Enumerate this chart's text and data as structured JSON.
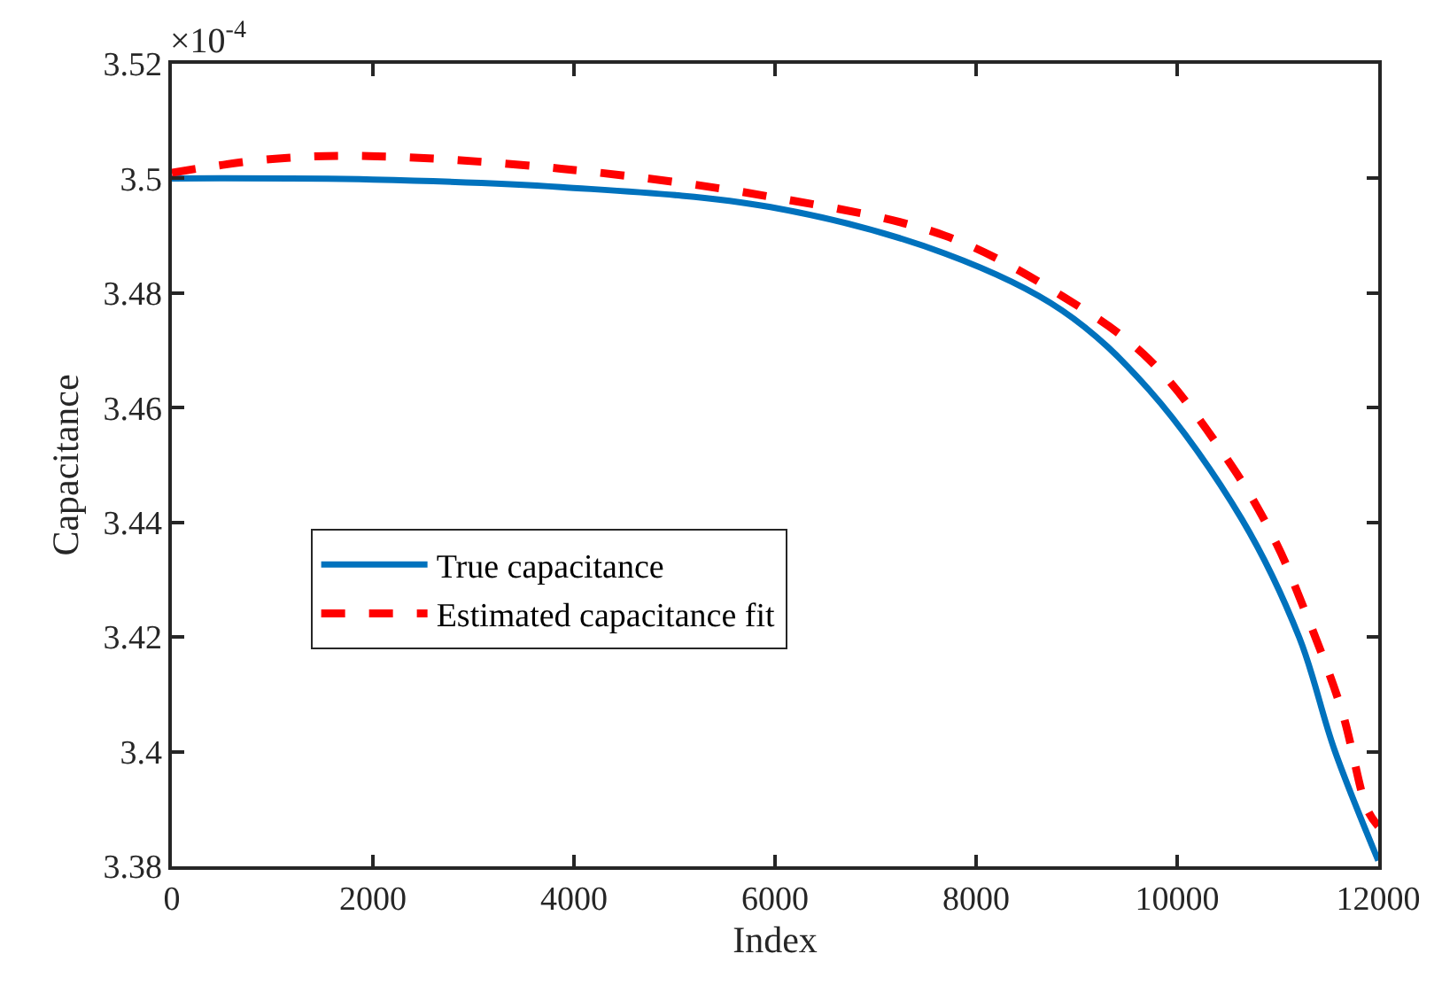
{
  "chart_data": {
    "type": "line",
    "xlabel": "Index",
    "ylabel": "Capacitance",
    "annotations": [
      "×10$^{-4}$"
    ],
    "xlim": [
      0,
      12000
    ],
    "xticks": [
      0,
      2000,
      4000,
      6000,
      8000,
      10000,
      12000
    ],
    "ylim": [
      3.38,
      3.52
    ],
    "yticks": [
      3.38,
      3.4,
      3.42,
      3.44,
      3.46,
      3.48,
      3.5,
      3.52
    ],
    "legend": "left",
    "marker": "none",
    "series": [
      {
        "name": "True capacitance",
        "color": "#0072bd",
        "line_style": "solid",
        "x": [
          0,
          2000,
          3870,
          5955,
          7691,
          8854,
          9722,
          10642,
          11215,
          11563,
          12000
        ],
        "values": [
          3.5,
          3.4998,
          3.4985,
          3.495,
          3.4869,
          3.477,
          3.4631,
          3.4406,
          3.4199,
          3.4004,
          3.381
        ]
      },
      {
        "name": "Estimated capacitance fit",
        "color": "#ff0000",
        "line_style": "dashed",
        "x": [
          0,
          1000,
          1962,
          3870,
          5955,
          7691,
          8854,
          9722,
          10590,
          10990,
          11215,
          11632,
          11892,
          12000
        ],
        "values": [
          3.501,
          3.5034,
          3.5039,
          3.5017,
          3.4968,
          3.49,
          3.4795,
          3.4684,
          3.4486,
          3.4362,
          3.427,
          3.4075,
          3.3899,
          3.387
        ]
      }
    ]
  }
}
